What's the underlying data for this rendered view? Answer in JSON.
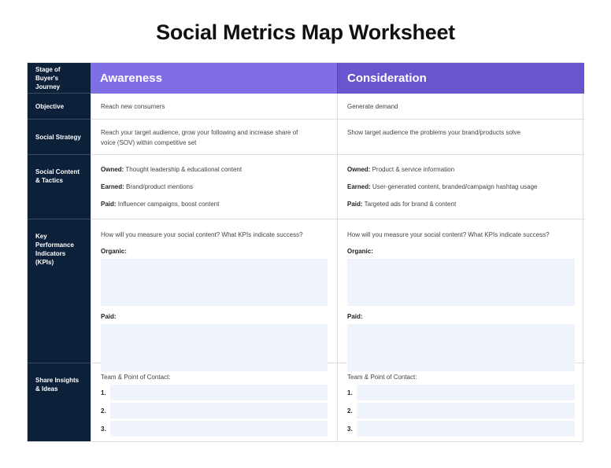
{
  "title": "Social Metrics Map Worksheet",
  "labels": {
    "stage": "Stage of Buyer's Journey",
    "objective": "Objective",
    "strategy": "Social Strategy",
    "content": "Social Content & Tactics",
    "kpi": "Key Performance Indicators (KPIs)",
    "share": "Share Insights & Ideas"
  },
  "columns": [
    {
      "stage": "Awareness",
      "objective": "Reach new consumers",
      "strategy": "Reach your target audience, grow your following and increase share of voice (SOV) within competitive set",
      "owned_label": "Owned:",
      "owned": "Thought leadership & educational content",
      "earned_label": "Earned:",
      "earned": "Brand/product mentions",
      "paid_label": "Paid:",
      "paid": "Influencer campaigns, boost content",
      "kpi_question": "How will you measure your social content? What KPIs indicate success?",
      "organic": "Organic:",
      "paid_kpi": "Paid:",
      "team": "Team & Point of Contact:",
      "n1": "1.",
      "n2": "2.",
      "n3": "3."
    },
    {
      "stage": "Consideration",
      "objective": "Generate demand",
      "strategy": "Show target audience the problems your brand/products solve",
      "owned_label": "Owned:",
      "owned": "Product & service information",
      "earned_label": "Earned:",
      "earned": "User-generated content, branded/campaign hashtag usage",
      "paid_label": "Paid:",
      "paid": "Targeted ads for brand & content",
      "kpi_question": "How will you measure your social content? What KPIs indicate success?",
      "organic": "Organic:",
      "paid_kpi": "Paid:",
      "team": "Team & Point of Contact:",
      "n1": "1.",
      "n2": "2.",
      "n3": "3."
    }
  ]
}
